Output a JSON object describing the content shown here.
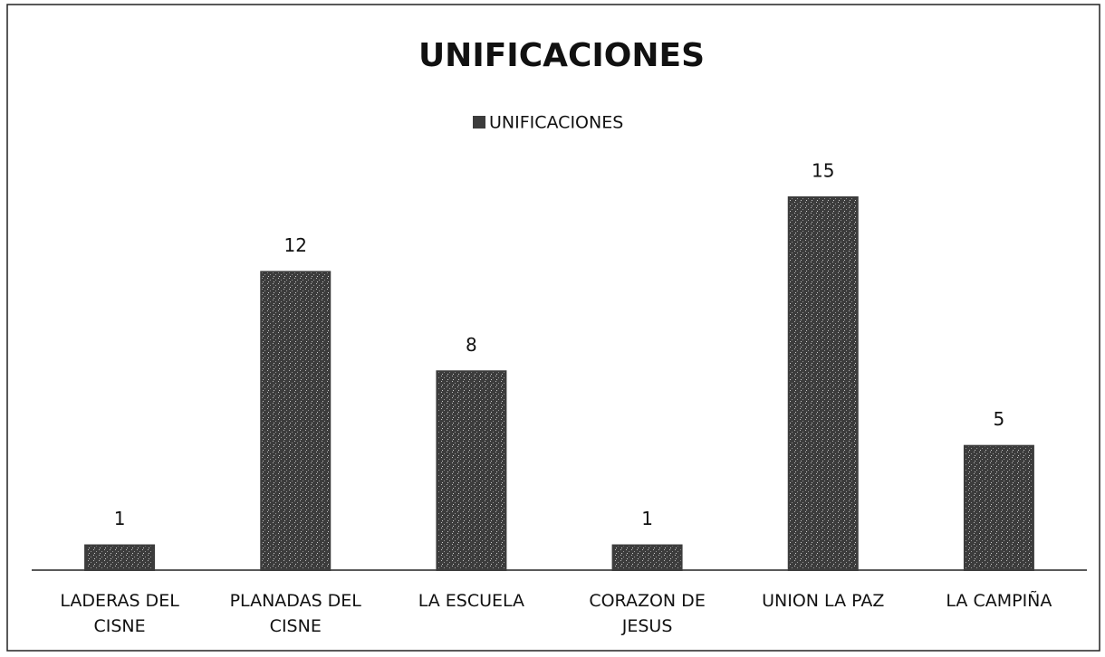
{
  "chart_data": {
    "type": "bar",
    "title": "UNIFICACIONES",
    "categories": [
      "LADERAS DEL CISNE",
      "PLANADAS DEL CISNE",
      "LA ESCUELA",
      "CORAZON DE JESUS",
      "UNION LA PAZ",
      "LA CAMPIÑA"
    ],
    "series": [
      {
        "name": "UNIFICACIONES",
        "color": "#3c3c3c",
        "values": [
          1,
          12,
          8,
          1,
          15,
          5
        ]
      }
    ],
    "legend": "top"
  }
}
